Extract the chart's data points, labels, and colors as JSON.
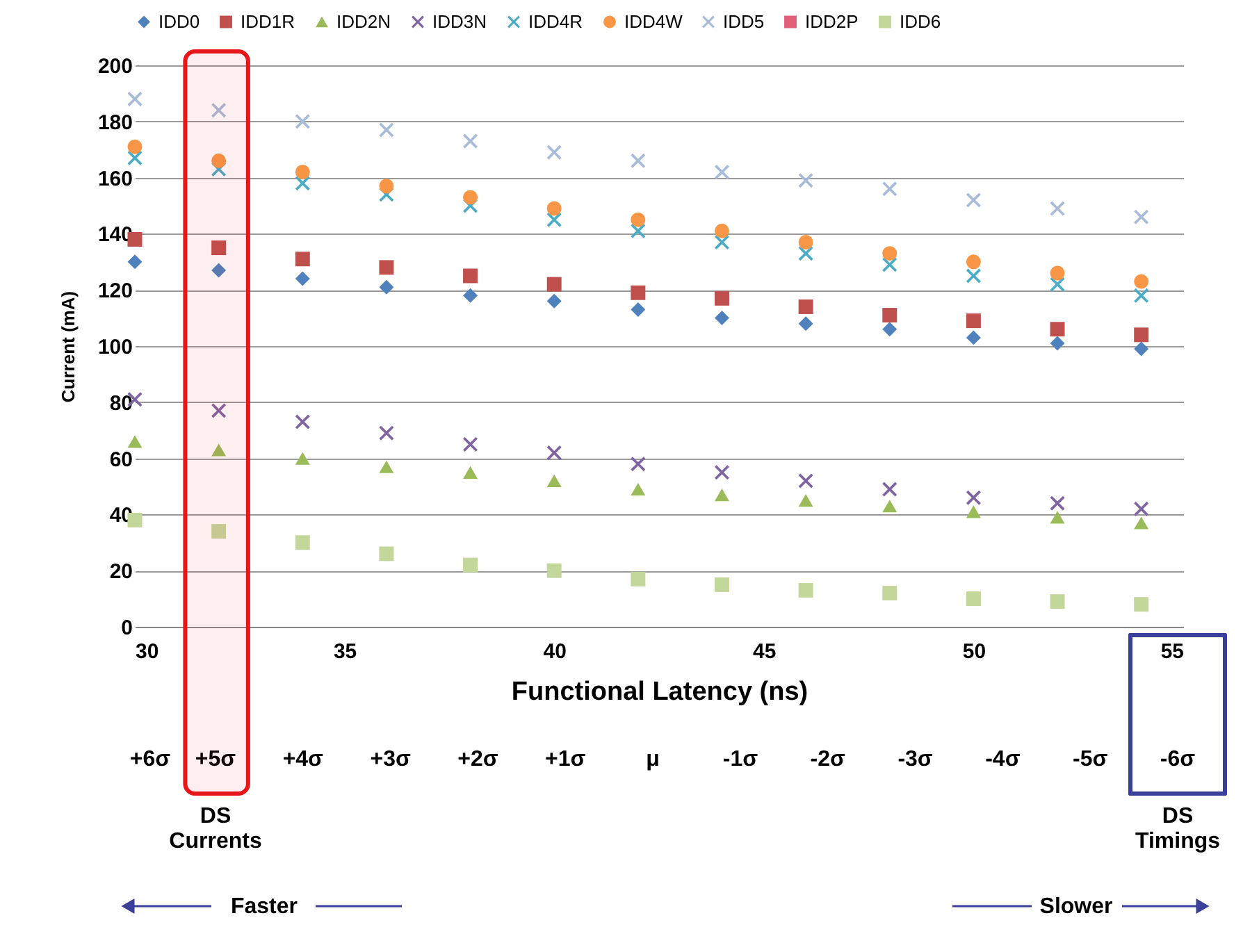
{
  "chart_data": {
    "type": "scatter",
    "xlabel": "Functional Latency (ns)",
    "ylabel": "Current (mA)",
    "x": [
      30,
      32,
      34,
      36,
      38,
      40,
      42,
      44,
      46,
      48,
      50,
      52,
      54
    ],
    "xlim": [
      30,
      55
    ],
    "xticks": [
      30,
      35,
      40,
      45,
      50,
      55
    ],
    "ylim": [
      0,
      200
    ],
    "yticks": [
      0,
      20,
      40,
      60,
      80,
      100,
      120,
      140,
      160,
      180,
      200
    ],
    "grid": "y",
    "legend": "top",
    "bands": [
      {
        "axis": "x",
        "from": 31.2,
        "to": 32.7,
        "color": "#e8161b"
      }
    ],
    "series": [
      {
        "name": "IDD0",
        "color": "#4f81bd",
        "marker": "diamond",
        "values": [
          130,
          127,
          124,
          121,
          118,
          116,
          113,
          110,
          108,
          106,
          103,
          101,
          99
        ]
      },
      {
        "name": "IDD1R",
        "color": "#c0504d",
        "marker": "square",
        "values": [
          138,
          135,
          131,
          128,
          125,
          122,
          119,
          117,
          114,
          111,
          109,
          106,
          104
        ]
      },
      {
        "name": "IDD2N",
        "color": "#9bbb59",
        "marker": "triangle",
        "values": [
          66,
          63,
          60,
          57,
          55,
          52,
          49,
          47,
          45,
          43,
          41,
          39,
          37
        ]
      },
      {
        "name": "IDD3N",
        "color": "#8064a2",
        "marker": "cross",
        "values": [
          81,
          77,
          73,
          69,
          65,
          62,
          58,
          55,
          52,
          49,
          46,
          44,
          42
        ]
      },
      {
        "name": "IDD4R",
        "color": "#4bacc6",
        "marker": "cross",
        "values": [
          167,
          163,
          158,
          154,
          150,
          145,
          141,
          137,
          133,
          129,
          125,
          122,
          118
        ]
      },
      {
        "name": "IDD4W",
        "color": "#f79646",
        "marker": "circle",
        "values": [
          171,
          166,
          162,
          157,
          153,
          149,
          145,
          141,
          137,
          133,
          130,
          126,
          123
        ]
      },
      {
        "name": "IDD5",
        "color": "#a8bcd9",
        "marker": "cross",
        "values": [
          188,
          184,
          180,
          177,
          173,
          169,
          166,
          162,
          159,
          156,
          152,
          149,
          146
        ]
      },
      {
        "name": "IDD2P",
        "color": "#e0607a",
        "marker": "square",
        "values": [
          null,
          null,
          null,
          null,
          null,
          null,
          null,
          null,
          null,
          null,
          null,
          null,
          null
        ]
      },
      {
        "name": "IDD6",
        "color": "#c4d79b",
        "marker": "square",
        "values": [
          38,
          34,
          30,
          26,
          22,
          20,
          17,
          15,
          13,
          12,
          10,
          9,
          8
        ]
      }
    ],
    "annotations": [
      "+6σ",
      "+5σ",
      "+4σ",
      "+3σ",
      "+2σ",
      "+1σ",
      "μ",
      "-1σ",
      "-2σ",
      "-3σ",
      "-4σ",
      "-5σ",
      "-6σ",
      "DS\nCurrents",
      "DS\nTimings",
      "Faster",
      "Slower"
    ]
  }
}
